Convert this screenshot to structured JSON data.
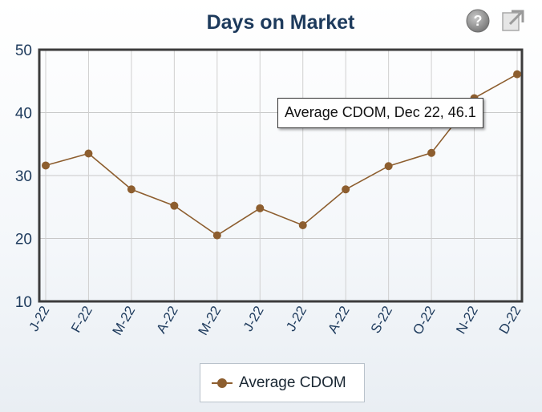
{
  "title": "Days on Market",
  "tooltip": "Average CDOM, Dec 22, 46.1",
  "legend": {
    "label": "Average CDOM"
  },
  "colors": {
    "series": "#8d5e2f",
    "title": "#1d3a5c",
    "axis_text": "#1d3a5c"
  },
  "icons": {
    "help": "help-icon",
    "popout": "popout-icon"
  },
  "chart_data": {
    "type": "line",
    "title": "Days on Market",
    "categories": [
      "J-22",
      "F-22",
      "M-22",
      "A-22",
      "M-22",
      "J-22",
      "J-22",
      "A-22",
      "S-22",
      "O-22",
      "N-22",
      "D-22"
    ],
    "series": [
      {
        "name": "Average CDOM",
        "values": [
          31.6,
          33.5,
          27.8,
          25.2,
          20.5,
          24.8,
          22.1,
          27.8,
          31.5,
          33.6,
          42.3,
          46.1
        ]
      }
    ],
    "yticks": [
      10,
      20,
      30,
      40,
      50
    ],
    "ylim": [
      10,
      50
    ],
    "grid": true,
    "legend_position": "bottom"
  }
}
